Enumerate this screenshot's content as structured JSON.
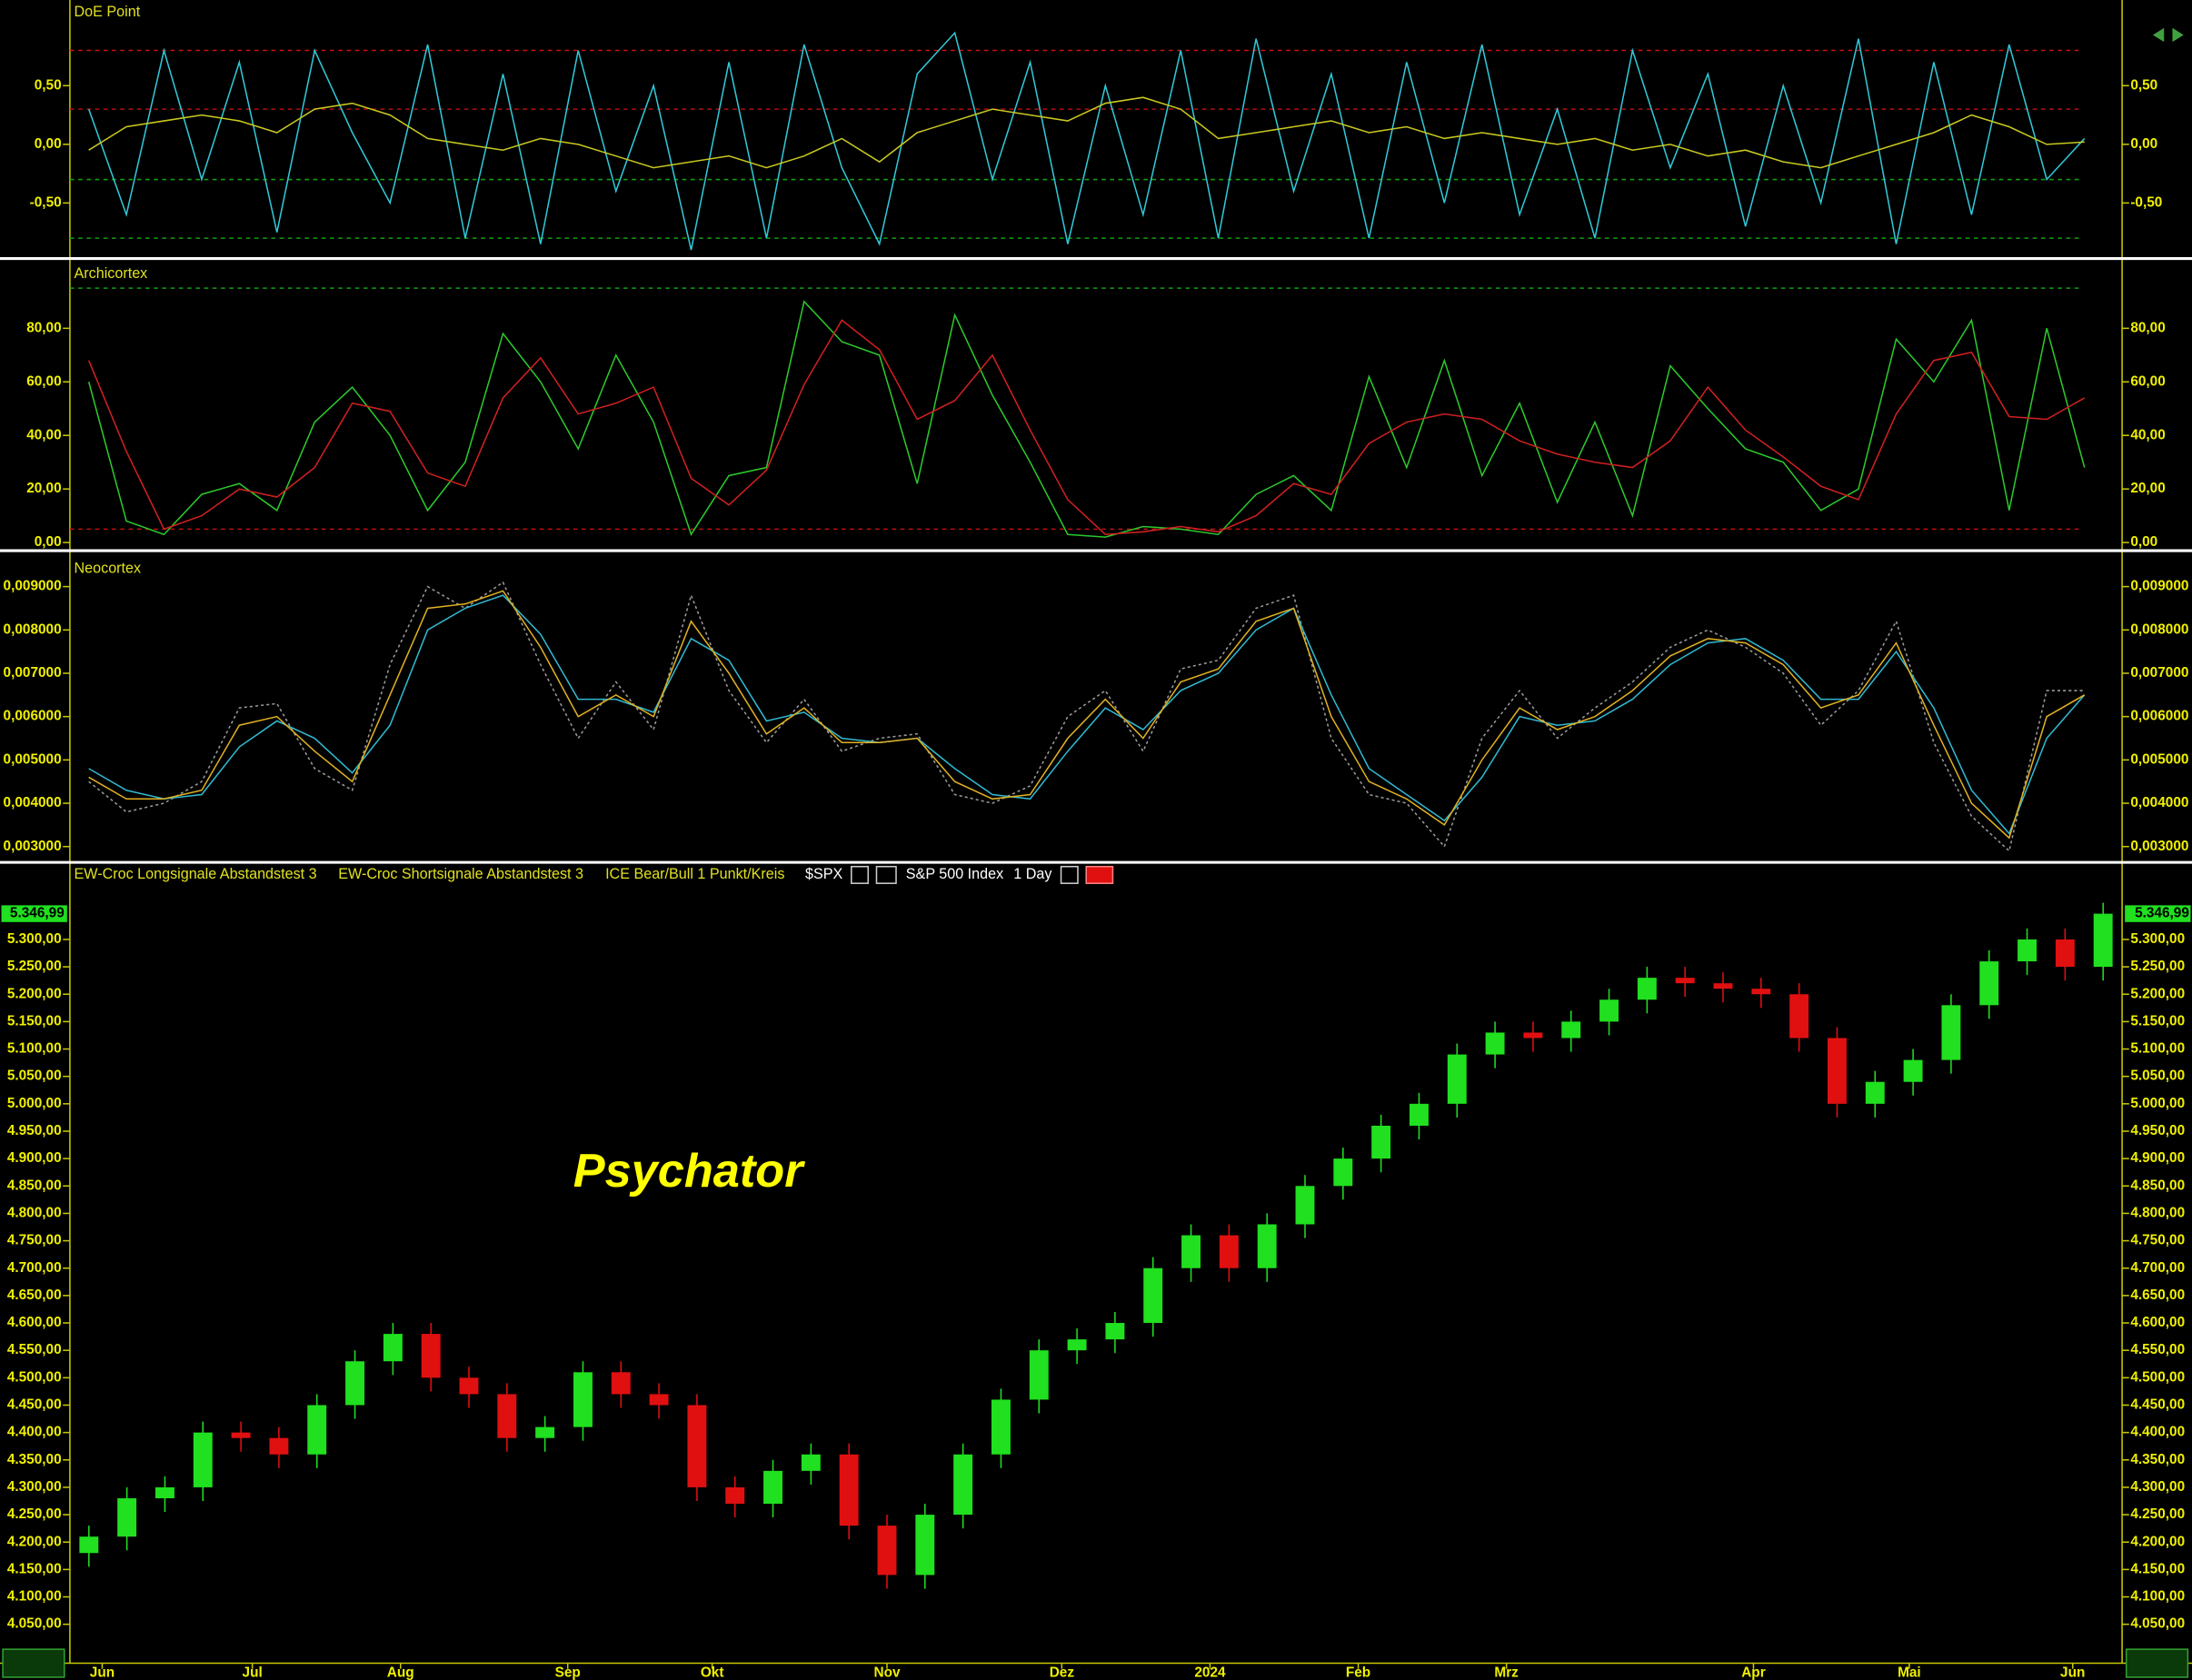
{
  "chart_data": [
    {
      "type": "line",
      "title": "DoE Point",
      "ylim": [
        -0.95,
        1.23
      ],
      "yticks": [
        {
          "value": 0.5,
          "label": "0,50"
        },
        {
          "value": 0,
          "label": "0,00"
        },
        {
          "value": -0.5,
          "label": "-0,50"
        }
      ],
      "hlines": [
        {
          "value": 0.8,
          "color": "#d01010"
        },
        {
          "value": 0.3,
          "color": "#b01010"
        },
        {
          "value": -0.3,
          "color": "#10a010"
        },
        {
          "value": -0.8,
          "color": "#10a010"
        }
      ],
      "series": [
        {
          "color": "#30c8d8",
          "values": [
            0.3,
            -0.6,
            0.8,
            -0.3,
            0.7,
            -0.75,
            0.8,
            0.1,
            -0.5,
            0.85,
            -0.8,
            0.6,
            -0.85,
            0.8,
            -0.4,
            0.5,
            -0.9,
            0.7,
            -0.8,
            0.85,
            -0.2,
            -0.85,
            0.6,
            0.95,
            -0.3,
            0.7,
            -0.85,
            0.5,
            -0.6,
            0.8,
            -0.8,
            0.9,
            -0.4,
            0.6,
            -0.8,
            0.7,
            -0.5,
            0.85,
            -0.6,
            0.3,
            -0.8,
            0.8,
            -0.2,
            0.6,
            -0.7,
            0.5,
            -0.5,
            0.9,
            -0.85,
            0.7,
            -0.6,
            0.85,
            -0.3,
            0.05
          ]
        },
        {
          "color": "#c8c820",
          "values": [
            -0.05,
            0.15,
            0.2,
            0.25,
            0.2,
            0.1,
            0.3,
            0.35,
            0.25,
            0.05,
            0,
            -0.05,
            0.05,
            0,
            -0.1,
            -0.2,
            -0.15,
            -0.1,
            -0.2,
            -0.1,
            0.05,
            -0.15,
            0.1,
            0.2,
            0.3,
            0.25,
            0.2,
            0.35,
            0.4,
            0.3,
            0.05,
            0.1,
            0.15,
            0.2,
            0.1,
            0.15,
            0.05,
            0.1,
            0.05,
            0,
            0.05,
            -0.05,
            0,
            -0.1,
            -0.05,
            -0.15,
            -0.2,
            -0.1,
            0,
            0.1,
            0.25,
            0.15,
            0,
            0.02
          ]
        }
      ]
    },
    {
      "type": "line",
      "title": "Archicortex",
      "ylim": [
        -2,
        105
      ],
      "yticks": [
        {
          "value": 0,
          "label": "0,00"
        },
        {
          "value": 20,
          "label": "20,00"
        },
        {
          "value": 40,
          "label": "40,00"
        },
        {
          "value": 60,
          "label": "60,00"
        },
        {
          "value": 80,
          "label": "80,00"
        }
      ],
      "hlines": [
        {
          "value": 95,
          "color": "#10a010"
        },
        {
          "value": 5,
          "color": "#c01010"
        }
      ],
      "series": [
        {
          "color": "#2cc82c",
          "values": [
            60,
            8,
            3,
            18,
            22,
            12,
            45,
            58,
            40,
            12,
            30,
            78,
            60,
            35,
            70,
            45,
            3,
            25,
            28,
            90,
            75,
            70,
            22,
            85,
            55,
            30,
            3,
            2,
            6,
            5,
            3,
            18,
            25,
            12,
            62,
            28,
            68,
            25,
            52,
            15,
            45,
            10,
            66,
            50,
            35,
            30,
            12,
            20,
            76,
            60,
            83,
            12,
            80,
            28
          ]
        },
        {
          "color": "#d02020",
          "values": [
            68,
            34,
            5,
            10,
            20,
            17,
            28,
            52,
            49,
            26,
            21,
            54,
            69,
            48,
            52,
            58,
            24,
            14,
            27,
            59,
            83,
            72,
            46,
            53,
            70,
            42,
            16,
            3,
            4,
            6,
            4,
            10,
            22,
            18,
            37,
            45,
            48,
            46,
            38,
            33,
            30,
            28,
            38,
            58,
            42,
            32,
            21,
            16,
            48,
            68,
            71,
            47,
            46,
            54
          ]
        }
      ]
    },
    {
      "type": "line",
      "title": "Neocortex",
      "ylim": [
        0.0027,
        0.0097
      ],
      "yticks": [
        {
          "value": 0.003,
          "label": "0,003000"
        },
        {
          "value": 0.004,
          "label": "0,004000"
        },
        {
          "value": 0.005,
          "label": "0,005000"
        },
        {
          "value": 0.006,
          "label": "0,006000"
        },
        {
          "value": 0.007,
          "label": "0,007000"
        },
        {
          "value": 0.008,
          "label": "0,008000"
        },
        {
          "value": 0.009,
          "label": "0,009000"
        }
      ],
      "series": [
        {
          "color": "#9a9a9a",
          "style": "dotted",
          "values": [
            0.0045,
            0.0038,
            0.004,
            0.0045,
            0.0062,
            0.0063,
            0.0048,
            0.0043,
            0.0072,
            0.009,
            0.0085,
            0.0091,
            0.0072,
            0.0055,
            0.0068,
            0.0057,
            0.0088,
            0.0066,
            0.0054,
            0.0064,
            0.0052,
            0.0055,
            0.0056,
            0.0042,
            0.004,
            0.0044,
            0.006,
            0.0066,
            0.0052,
            0.0071,
            0.0073,
            0.0085,
            0.0088,
            0.0055,
            0.0042,
            0.004,
            0.003,
            0.0055,
            0.0066,
            0.0055,
            0.0062,
            0.0068,
            0.0076,
            0.008,
            0.0076,
            0.007,
            0.0058,
            0.0066,
            0.0082,
            0.0054,
            0.0037,
            0.0029,
            0.0066,
            0.0066
          ]
        },
        {
          "color": "#30b8d0",
          "values": [
            0.0048,
            0.0043,
            0.0041,
            0.0042,
            0.0053,
            0.0059,
            0.0055,
            0.0047,
            0.0058,
            0.008,
            0.0085,
            0.0088,
            0.0079,
            0.0064,
            0.0064,
            0.0061,
            0.0078,
            0.0073,
            0.0059,
            0.0061,
            0.0055,
            0.0054,
            0.0055,
            0.0048,
            0.0042,
            0.0041,
            0.0052,
            0.0062,
            0.0057,
            0.0066,
            0.007,
            0.008,
            0.0085,
            0.0065,
            0.0048,
            0.0042,
            0.0036,
            0.0046,
            0.006,
            0.0058,
            0.0059,
            0.0064,
            0.0072,
            0.0077,
            0.0078,
            0.0073,
            0.0064,
            0.0064,
            0.0075,
            0.0062,
            0.0043,
            0.0033,
            0.0055,
            0.0065
          ]
        },
        {
          "color": "#e0b020",
          "values": [
            0.0046,
            0.0041,
            0.0041,
            0.0043,
            0.0058,
            0.006,
            0.0052,
            0.0045,
            0.0065,
            0.0085,
            0.0086,
            0.0089,
            0.0076,
            0.006,
            0.0065,
            0.006,
            0.0082,
            0.007,
            0.0056,
            0.0062,
            0.0054,
            0.0054,
            0.0055,
            0.0045,
            0.0041,
            0.0042,
            0.0055,
            0.0064,
            0.0055,
            0.0068,
            0.0071,
            0.0082,
            0.0085,
            0.006,
            0.0045,
            0.0041,
            0.0035,
            0.005,
            0.0062,
            0.0057,
            0.006,
            0.0066,
            0.0074,
            0.0078,
            0.0077,
            0.0072,
            0.0062,
            0.0065,
            0.0077,
            0.0058,
            0.004,
            0.0032,
            0.006,
            0.0065
          ]
        }
      ]
    },
    {
      "type": "candlestick",
      "indicators": [
        "EW-Croc Longsignale Abstandstest 3",
        "EW-Croc Shortsignale Abstandstest 3",
        "ICE Bear/Bull 1 Punkt/Kreis"
      ],
      "symbol": "$SPX",
      "name": "S&P 500 Index",
      "interval": "1 Day",
      "annotation": "Psychator",
      "up_color": "#20e020",
      "down_color": "#e01010",
      "last_price": {
        "value": 5346.99,
        "label": "5.346,99"
      },
      "ylim": [
        3984,
        5382
      ],
      "yticks": [
        {
          "value": 4050,
          "label": "4.050,00"
        },
        {
          "value": 4100,
          "label": "4.100,00"
        },
        {
          "value": 4150,
          "label": "4.150,00"
        },
        {
          "value": 4200,
          "label": "4.200,00"
        },
        {
          "value": 4250,
          "label": "4.250,00"
        },
        {
          "value": 4300,
          "label": "4.300,00"
        },
        {
          "value": 4350,
          "label": "4.350,00"
        },
        {
          "value": 4400,
          "label": "4.400,00"
        },
        {
          "value": 4450,
          "label": "4.450,00"
        },
        {
          "value": 4500,
          "label": "4.500,00"
        },
        {
          "value": 4550,
          "label": "4.550,00"
        },
        {
          "value": 4600,
          "label": "4.600,00"
        },
        {
          "value": 4650,
          "label": "4.650,00"
        },
        {
          "value": 4700,
          "label": "4.700,00"
        },
        {
          "value": 4750,
          "label": "4.750,00"
        },
        {
          "value": 4800,
          "label": "4.800,00"
        },
        {
          "value": 4850,
          "label": "4.850,00"
        },
        {
          "value": 4900,
          "label": "4.900,00"
        },
        {
          "value": 4950,
          "label": "4.950,00"
        },
        {
          "value": 5000,
          "label": "5.000,00"
        },
        {
          "value": 5050,
          "label": "5.050,00"
        },
        {
          "value": 5100,
          "label": "5.100,00"
        },
        {
          "value": 5150,
          "label": "5.150,00"
        },
        {
          "value": 5200,
          "label": "5.200,00"
        },
        {
          "value": 5250,
          "label": "5.250,00"
        },
        {
          "value": 5300,
          "label": "5.300,00"
        }
      ],
      "xlim": [
        0,
        54
      ],
      "xticks": [
        {
          "value": 0.85,
          "label": "Jun"
        },
        {
          "value": 4.8,
          "label": "Jul"
        },
        {
          "value": 8.7,
          "label": "Aug"
        },
        {
          "value": 13.1,
          "label": "Sep"
        },
        {
          "value": 16.9,
          "label": "Okt"
        },
        {
          "value": 21.5,
          "label": "Nov"
        },
        {
          "value": 26.1,
          "label": "Dez"
        },
        {
          "value": 30,
          "label": "2024"
        },
        {
          "value": 33.9,
          "label": "Feb"
        },
        {
          "value": 37.8,
          "label": "Mrz"
        },
        {
          "value": 44.3,
          "label": "Apr"
        },
        {
          "value": 48.4,
          "label": "Mai"
        },
        {
          "value": 52.7,
          "label": "Jun"
        }
      ],
      "open": [
        4180,
        4210,
        4280,
        4300,
        4400,
        4390,
        4360,
        4450,
        4530,
        4580,
        4500,
        4470,
        4390,
        4410,
        4510,
        4470,
        4450,
        4300,
        4270,
        4330,
        4360,
        4230,
        4140,
        4250,
        4360,
        4460,
        4550,
        4570,
        4600,
        4700,
        4760,
        4700,
        4780,
        4850,
        4900,
        4960,
        5000,
        5090,
        5130,
        5120,
        5150,
        5190,
        5230,
        5220,
        5210,
        5200,
        5120,
        5000,
        5040,
        5080,
        5180,
        5260,
        5300,
        5250
      ],
      "high": [
        4230,
        4300,
        4320,
        4420,
        4420,
        4410,
        4470,
        4550,
        4600,
        4600,
        4520,
        4490,
        4430,
        4530,
        4530,
        4490,
        4470,
        4320,
        4350,
        4380,
        4380,
        4250,
        4270,
        4380,
        4480,
        4570,
        4590,
        4620,
        4720,
        4780,
        4780,
        4800,
        4870,
        4920,
        4980,
        5020,
        5110,
        5150,
        5150,
        5170,
        5210,
        5250,
        5250,
        5240,
        5230,
        5220,
        5140,
        5060,
        5100,
        5200,
        5280,
        5320,
        5320,
        5367
      ],
      "low": [
        4155,
        4185,
        4255,
        4275,
        4365,
        4335,
        4335,
        4425,
        4505,
        4475,
        4445,
        4365,
        4365,
        4385,
        4445,
        4425,
        4275,
        4245,
        4245,
        4305,
        4205,
        4115,
        4115,
        4225,
        4335,
        4435,
        4525,
        4545,
        4575,
        4675,
        4675,
        4675,
        4755,
        4825,
        4875,
        4935,
        4975,
        5065,
        5095,
        5095,
        5125,
        5165,
        5195,
        5185,
        5175,
        5095,
        4975,
        4975,
        5015,
        5055,
        5155,
        5235,
        5225,
        5225
      ],
      "close": [
        4210,
        4280,
        4300,
        4400,
        4390,
        4360,
        4450,
        4530,
        4580,
        4500,
        4470,
        4390,
        4410,
        4510,
        4470,
        4450,
        4300,
        4270,
        4330,
        4360,
        4230,
        4140,
        4250,
        4360,
        4460,
        4550,
        4570,
        4600,
        4700,
        4760,
        4700,
        4780,
        4850,
        4900,
        4960,
        5000,
        5090,
        5130,
        5120,
        5150,
        5190,
        5230,
        5220,
        5210,
        5200,
        5120,
        5000,
        5040,
        5080,
        5180,
        5260,
        5300,
        5250,
        5346.99
      ]
    }
  ]
}
